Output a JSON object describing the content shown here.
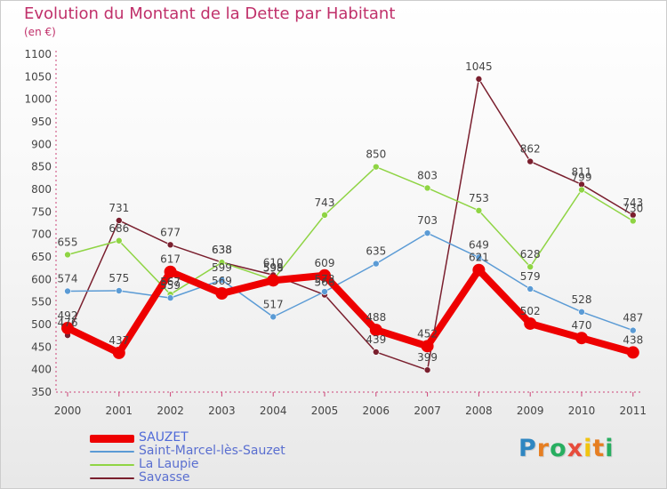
{
  "chart_data": {
    "type": "line",
    "title": "Evolution du Montant de la Dette par Habitant",
    "subtitle": "(en €)",
    "categories": [
      "2000",
      "2001",
      "2002",
      "2003",
      "2004",
      "2005",
      "2006",
      "2007",
      "2008",
      "2009",
      "2010",
      "2011"
    ],
    "ylim": [
      350,
      1100
    ],
    "yticks": [
      350,
      400,
      450,
      500,
      550,
      600,
      650,
      700,
      750,
      800,
      850,
      900,
      950,
      1000,
      1050,
      1100
    ],
    "grid": false,
    "legend_position": "bottom-left",
    "series": [
      {
        "name": "SAUZET",
        "color": "#ee0000",
        "values": [
          492,
          437,
          617,
          569,
          598,
          609,
          488,
          452,
          621,
          502,
          470,
          438
        ]
      },
      {
        "name": "Saint-Marcel-lès-Sauzet",
        "color": "#5b9bd5",
        "values": [
          574,
          575,
          559,
          599,
          517,
          573,
          635,
          703,
          649,
          579,
          528,
          487
        ]
      },
      {
        "name": "La Laupie",
        "color": "#8fd444",
        "values": [
          655,
          686,
          567,
          638,
          599,
          743,
          850,
          803,
          753,
          628,
          799,
          730
        ]
      },
      {
        "name": "Savasse",
        "color": "#7a1f2e",
        "values": [
          476,
          731,
          677,
          638,
          610,
          566,
          439,
          399,
          1045,
          862,
          811,
          743
        ]
      }
    ]
  },
  "logo": {
    "letters": [
      "P",
      "r",
      "o",
      "x",
      "i",
      "t",
      "i"
    ],
    "colors": [
      "#2e86c1",
      "#e67e22",
      "#27ae60",
      "#e74c3c",
      "#f1c40f",
      "#e67e22",
      "#27ae60"
    ]
  }
}
